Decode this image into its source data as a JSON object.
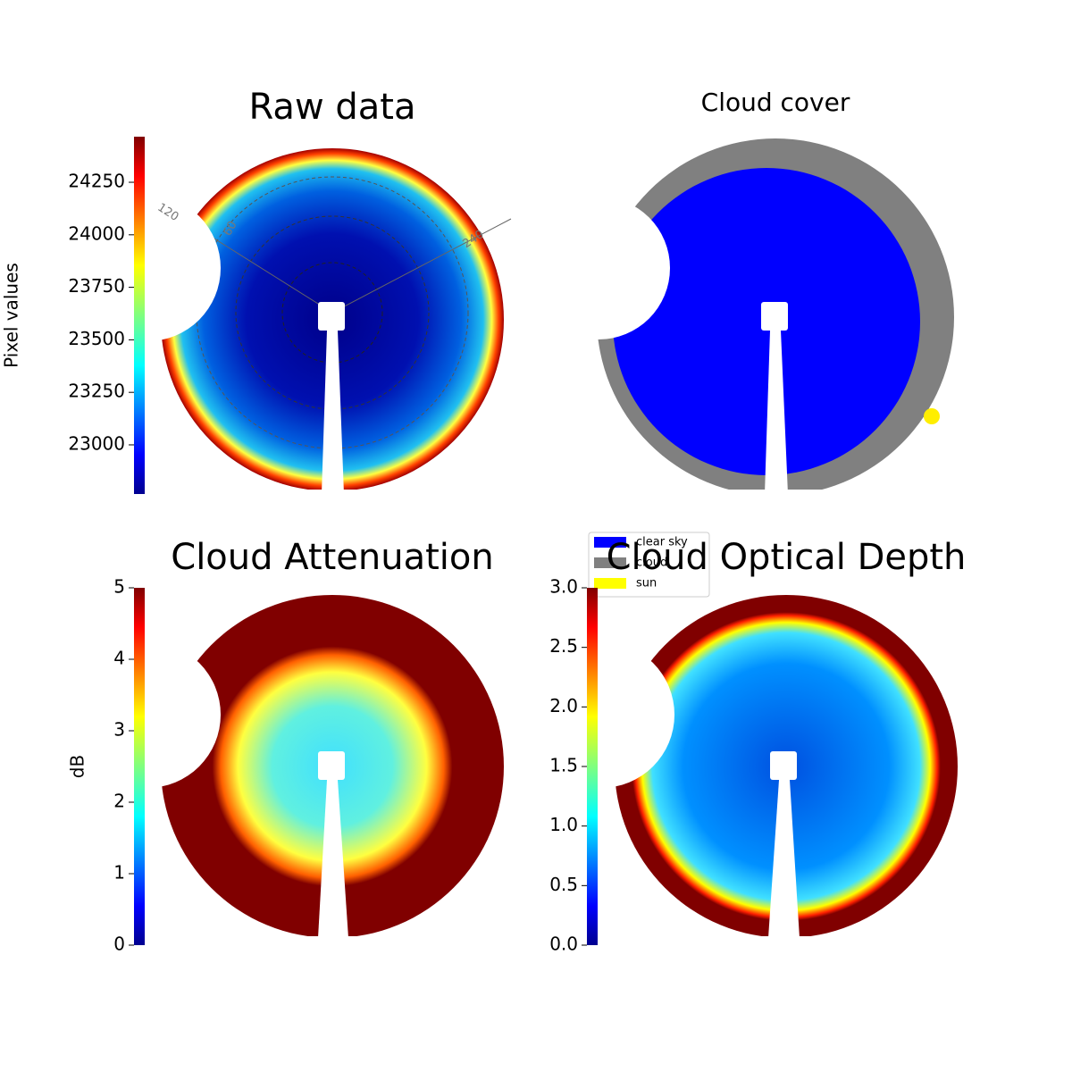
{
  "chart_data": [
    {
      "type": "image",
      "title": "Raw data",
      "ylabel": "Pixel values",
      "ylim": [
        22766,
        24467
      ],
      "yticks": [
        23000,
        23250,
        23500,
        23750,
        24000,
        24250
      ],
      "colormap": "jet",
      "annotations": [
        "120",
        "60",
        "240"
      ]
    },
    {
      "type": "image",
      "title": "Cloud cover",
      "legend": [
        {
          "name": "clear sky",
          "color": "#0000ff"
        },
        {
          "name": "cloud",
          "color": "#808080"
        },
        {
          "name": "sun",
          "color": "#ffff00"
        }
      ]
    },
    {
      "type": "image",
      "title": "Cloud Attenuation",
      "ylabel": "dB",
      "ylim": [
        0,
        5
      ],
      "yticks": [
        0,
        1,
        2,
        3,
        4,
        5
      ],
      "colormap": "jet"
    },
    {
      "type": "image",
      "title": "Cloud Optical Depth",
      "ylim": [
        0,
        3
      ],
      "yticks": [
        {
          "value": 0,
          "label": "0.0"
        },
        {
          "value": 0.5,
          "label": "0.5"
        },
        {
          "value": 1,
          "label": "1.0"
        },
        {
          "value": 1.5,
          "label": "1.5"
        },
        {
          "value": 2,
          "label": "2.0"
        },
        {
          "value": 2.5,
          "label": "2.5"
        },
        {
          "value": 3,
          "label": "3.0"
        }
      ],
      "colormap": "jet"
    }
  ]
}
